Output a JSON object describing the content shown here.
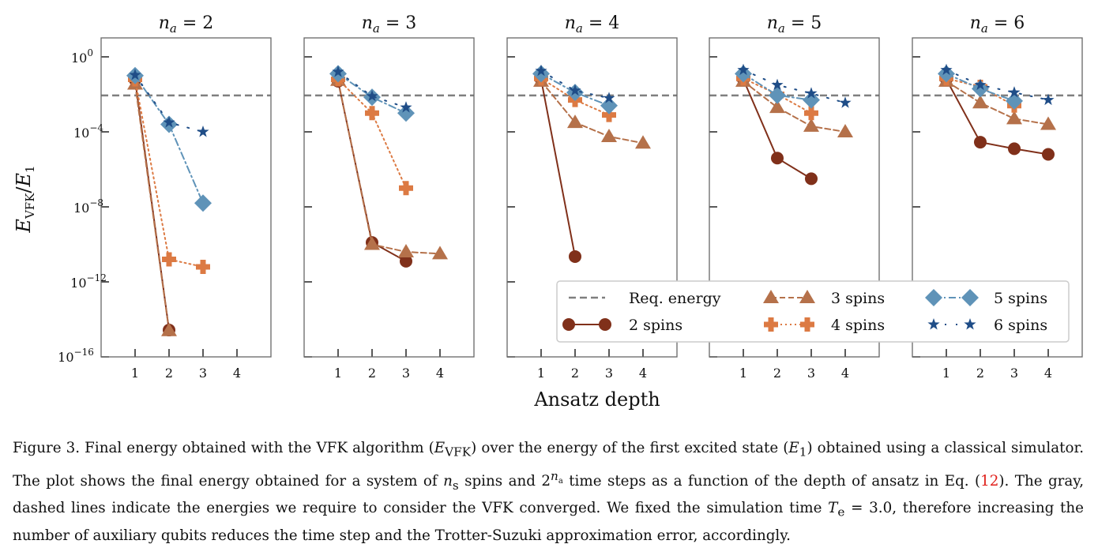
{
  "chart_data": {
    "type": "line",
    "yscale": "log",
    "ylabel": "E_VFK/E_1",
    "ylabel_parts": {
      "main": "E",
      "sub": "VFK",
      "sep": "/",
      "main2": "E",
      "sub2": "1"
    },
    "xlabel": "Ansatz depth",
    "xlim": [
      0,
      5
    ],
    "ylim_log10": [
      -16,
      1
    ],
    "xticks": [
      "1",
      "2",
      "3",
      "4"
    ],
    "yticks": [
      {
        "base": "10",
        "exp": "0",
        "log10": 0
      },
      {
        "base": "10",
        "exp": "−4",
        "log10": -4
      },
      {
        "base": "10",
        "exp": "−8",
        "log10": -8
      },
      {
        "base": "10",
        "exp": "−12",
        "log10": -12
      },
      {
        "base": "10",
        "exp": "−16",
        "log10": -16
      }
    ],
    "reference_line": {
      "label": "Req. energy",
      "log10": -2.06,
      "color": "#7f7f7f"
    },
    "series_styles": [
      {
        "name": "2 spins",
        "color": "#80301a",
        "marker": "circle",
        "dash": ""
      },
      {
        "name": "3 spins",
        "color": "#b5714a",
        "marker": "triangle",
        "dash": "7,4"
      },
      {
        "name": "4 spins",
        "color": "#dc7a43",
        "marker": "plus",
        "dash": "2,4"
      },
      {
        "name": "5 spins",
        "color": "#5f93b8",
        "marker": "diamond",
        "dash": "9,4,2,4"
      },
      {
        "name": "6 spins",
        "color": "#1f4d87",
        "marker": "star",
        "dash": "2,12"
      }
    ],
    "panels": [
      {
        "title_var": "n",
        "title_sub": "a",
        "title_eq": " = 2",
        "series_log10": [
          [
            [
              1,
              -1.22
            ],
            [
              2,
              -14.57
            ]
          ],
          [
            [
              1,
              -1.45
            ],
            [
              2,
              -14.6
            ]
          ],
          [
            [
              1,
              -1.2
            ],
            [
              2,
              -10.8
            ],
            [
              3,
              -11.2
            ]
          ],
          [
            [
              1,
              -1.0
            ],
            [
              2,
              -3.6
            ],
            [
              3,
              -7.8
            ]
          ],
          [
            [
              1,
              -0.97
            ],
            [
              2,
              -3.5
            ],
            [
              3,
              -4.0
            ]
          ]
        ]
      },
      {
        "title_var": "n",
        "title_sub": "a",
        "title_eq": " = 3",
        "series_log10": [
          [
            [
              1,
              -1.3
            ],
            [
              2,
              -9.9
            ],
            [
              3,
              -10.9
            ]
          ],
          [
            [
              1,
              -1.25
            ],
            [
              2,
              -10.0
            ],
            [
              3,
              -10.4
            ],
            [
              4,
              -10.5
            ]
          ],
          [
            [
              1,
              -1.2
            ],
            [
              2,
              -3.0
            ],
            [
              3,
              -7.0
            ]
          ],
          [
            [
              1,
              -0.9
            ],
            [
              2,
              -2.15
            ],
            [
              3,
              -3.0
            ]
          ],
          [
            [
              1,
              -0.8
            ],
            [
              2,
              -2.1
            ],
            [
              3,
              -2.7
            ]
          ]
        ]
      },
      {
        "title_var": "n",
        "title_sub": "a",
        "title_eq": " = 4",
        "series_log10": [
          [
            [
              1,
              -1.2
            ],
            [
              2,
              -10.65
            ]
          ],
          [
            [
              1,
              -1.3
            ],
            [
              2,
              -3.5
            ],
            [
              3,
              -4.25
            ],
            [
              4,
              -4.6
            ]
          ],
          [
            [
              1,
              -1.15
            ],
            [
              2,
              -2.3
            ],
            [
              3,
              -3.1
            ]
          ],
          [
            [
              1,
              -0.9
            ],
            [
              2,
              -1.9
            ],
            [
              3,
              -2.6
            ]
          ],
          [
            [
              1,
              -0.75
            ],
            [
              2,
              -1.8
            ],
            [
              3,
              -2.2
            ]
          ]
        ]
      },
      {
        "title_var": "n",
        "title_sub": "a",
        "title_eq": " = 5",
        "series_log10": [
          [
            [
              1,
              -1.2
            ],
            [
              2,
              -5.4
            ],
            [
              3,
              -6.5
            ]
          ],
          [
            [
              1,
              -1.3
            ],
            [
              2,
              -2.7
            ],
            [
              3,
              -3.7
            ],
            [
              4,
              -4.0
            ]
          ],
          [
            [
              1,
              -1.15
            ],
            [
              2,
              -2.0
            ],
            [
              3,
              -3.0
            ]
          ],
          [
            [
              1,
              -0.9
            ],
            [
              2,
              -2.05
            ],
            [
              3,
              -2.3
            ]
          ],
          [
            [
              1,
              -0.7
            ],
            [
              2,
              -1.5
            ],
            [
              3,
              -1.95
            ],
            [
              4,
              -2.45
            ]
          ]
        ]
      },
      {
        "title_var": "n",
        "title_sub": "a",
        "title_eq": " = 6",
        "series_log10": [
          [
            [
              1,
              -1.2
            ],
            [
              2,
              -4.55
            ],
            [
              3,
              -4.9
            ],
            [
              4,
              -5.2
            ]
          ],
          [
            [
              1,
              -1.3
            ],
            [
              2,
              -2.45
            ],
            [
              3,
              -3.3
            ],
            [
              4,
              -3.6
            ]
          ],
          [
            [
              1,
              -1.15
            ],
            [
              2,
              -1.6
            ],
            [
              3,
              -2.6
            ]
          ],
          [
            [
              1,
              -0.9
            ],
            [
              2,
              -1.7
            ],
            [
              3,
              -2.35
            ]
          ],
          [
            [
              1,
              -0.7
            ],
            [
              2,
              -1.5
            ],
            [
              3,
              -1.9
            ],
            [
              4,
              -2.3
            ]
          ]
        ]
      }
    ],
    "legend": {
      "placement": "lower-right",
      "columns": 3
    }
  },
  "caption": {
    "label": "Figure 3.",
    "t1": " Final energy obtained with the VFK algorithm (",
    "m1": "E",
    "m1sub": "VFK",
    "t2": ") over the energy of the first excited state (",
    "m2": "E",
    "m2sub": "1",
    "t3": ") obtained using a classical simulator. The plot shows the final energy obtained for a system of ",
    "m3": "n",
    "m3sub": "s",
    "t4": " spins and 2",
    "m4sup": "n",
    "m4supsub": "a",
    "t5": " time steps as a function of the depth of ansatz in Eq. (",
    "ref": "12",
    "t6": "). The gray, dashed lines indicate the energies we require to consider the VFK converged. We fixed the simulation time ",
    "m5": "T",
    "m5sub": "e",
    "t7": " = 3.0, therefore increasing the number of auxiliary qubits reduces the time step and the Trotter-Suzuki approximation error, accordingly."
  }
}
